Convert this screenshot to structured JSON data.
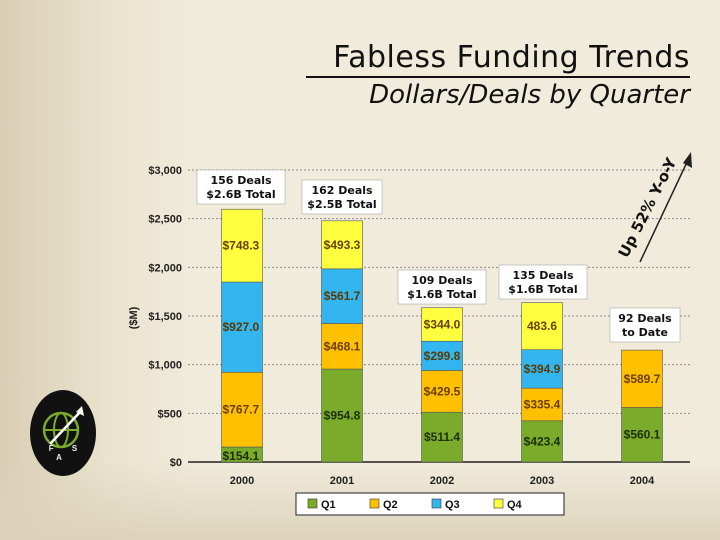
{
  "header": {
    "title": "Fabless Funding Trends",
    "subtitle": "Dollars/Deals by Quarter"
  },
  "logo": {
    "letters": "F S A"
  },
  "chart_data": {
    "type": "bar",
    "stacked": true,
    "categories": [
      "2000",
      "2001",
      "2002",
      "2003",
      "2004"
    ],
    "series": [
      {
        "name": "Q1",
        "color": "#7aab2a",
        "values": [
          154.1,
          954.8,
          511.4,
          423.4,
          560.1
        ],
        "labels": [
          "$154.1",
          "$954.8",
          "$511.4",
          "$423.4",
          "$560.1"
        ]
      },
      {
        "name": "Q2",
        "color": "#ffc000",
        "values": [
          767.7,
          468.1,
          429.5,
          335.4,
          589.7
        ],
        "labels": [
          "$767.7",
          "$468.1",
          "$429.5",
          "$335.4",
          "$589.7"
        ]
      },
      {
        "name": "Q3",
        "color": "#33b5f0",
        "values": [
          927.0,
          561.7,
          299.8,
          394.9,
          null
        ],
        "labels": [
          "$927.0",
          "$561.7",
          "$299.8",
          "$394.9",
          ""
        ]
      },
      {
        "name": "Q4",
        "color": "#ffff40",
        "values": [
          748.3,
          493.3,
          344.0,
          483.6,
          null
        ],
        "labels": [
          "$748.3",
          "$493.3",
          "$344.0",
          "483.6",
          ""
        ]
      }
    ],
    "ylabel": "($M)",
    "ylim": [
      0,
      3000
    ],
    "yticks": [
      0,
      500,
      1000,
      1500,
      2000,
      2500,
      3000
    ],
    "ytick_labels": [
      "$0",
      "$500",
      "$1,000",
      "$1,500",
      "$2,000",
      "$2,500",
      "$3,000"
    ],
    "legend": {
      "placement": "bottom-center"
    },
    "annotations": [
      {
        "category": "2000",
        "lines": [
          "156 Deals",
          "$2.6B Total"
        ]
      },
      {
        "category": "2001",
        "lines": [
          "162 Deals",
          "$2.5B Total"
        ]
      },
      {
        "category": "2002",
        "lines": [
          "109 Deals",
          "$1.6B Total"
        ]
      },
      {
        "category": "2003",
        "lines": [
          "135 Deals",
          "$1.6B Total"
        ]
      },
      {
        "category": "2004",
        "lines": [
          "92 Deals",
          "to Date"
        ]
      }
    ],
    "trend_note": "Up 52% Y-o-Y"
  }
}
